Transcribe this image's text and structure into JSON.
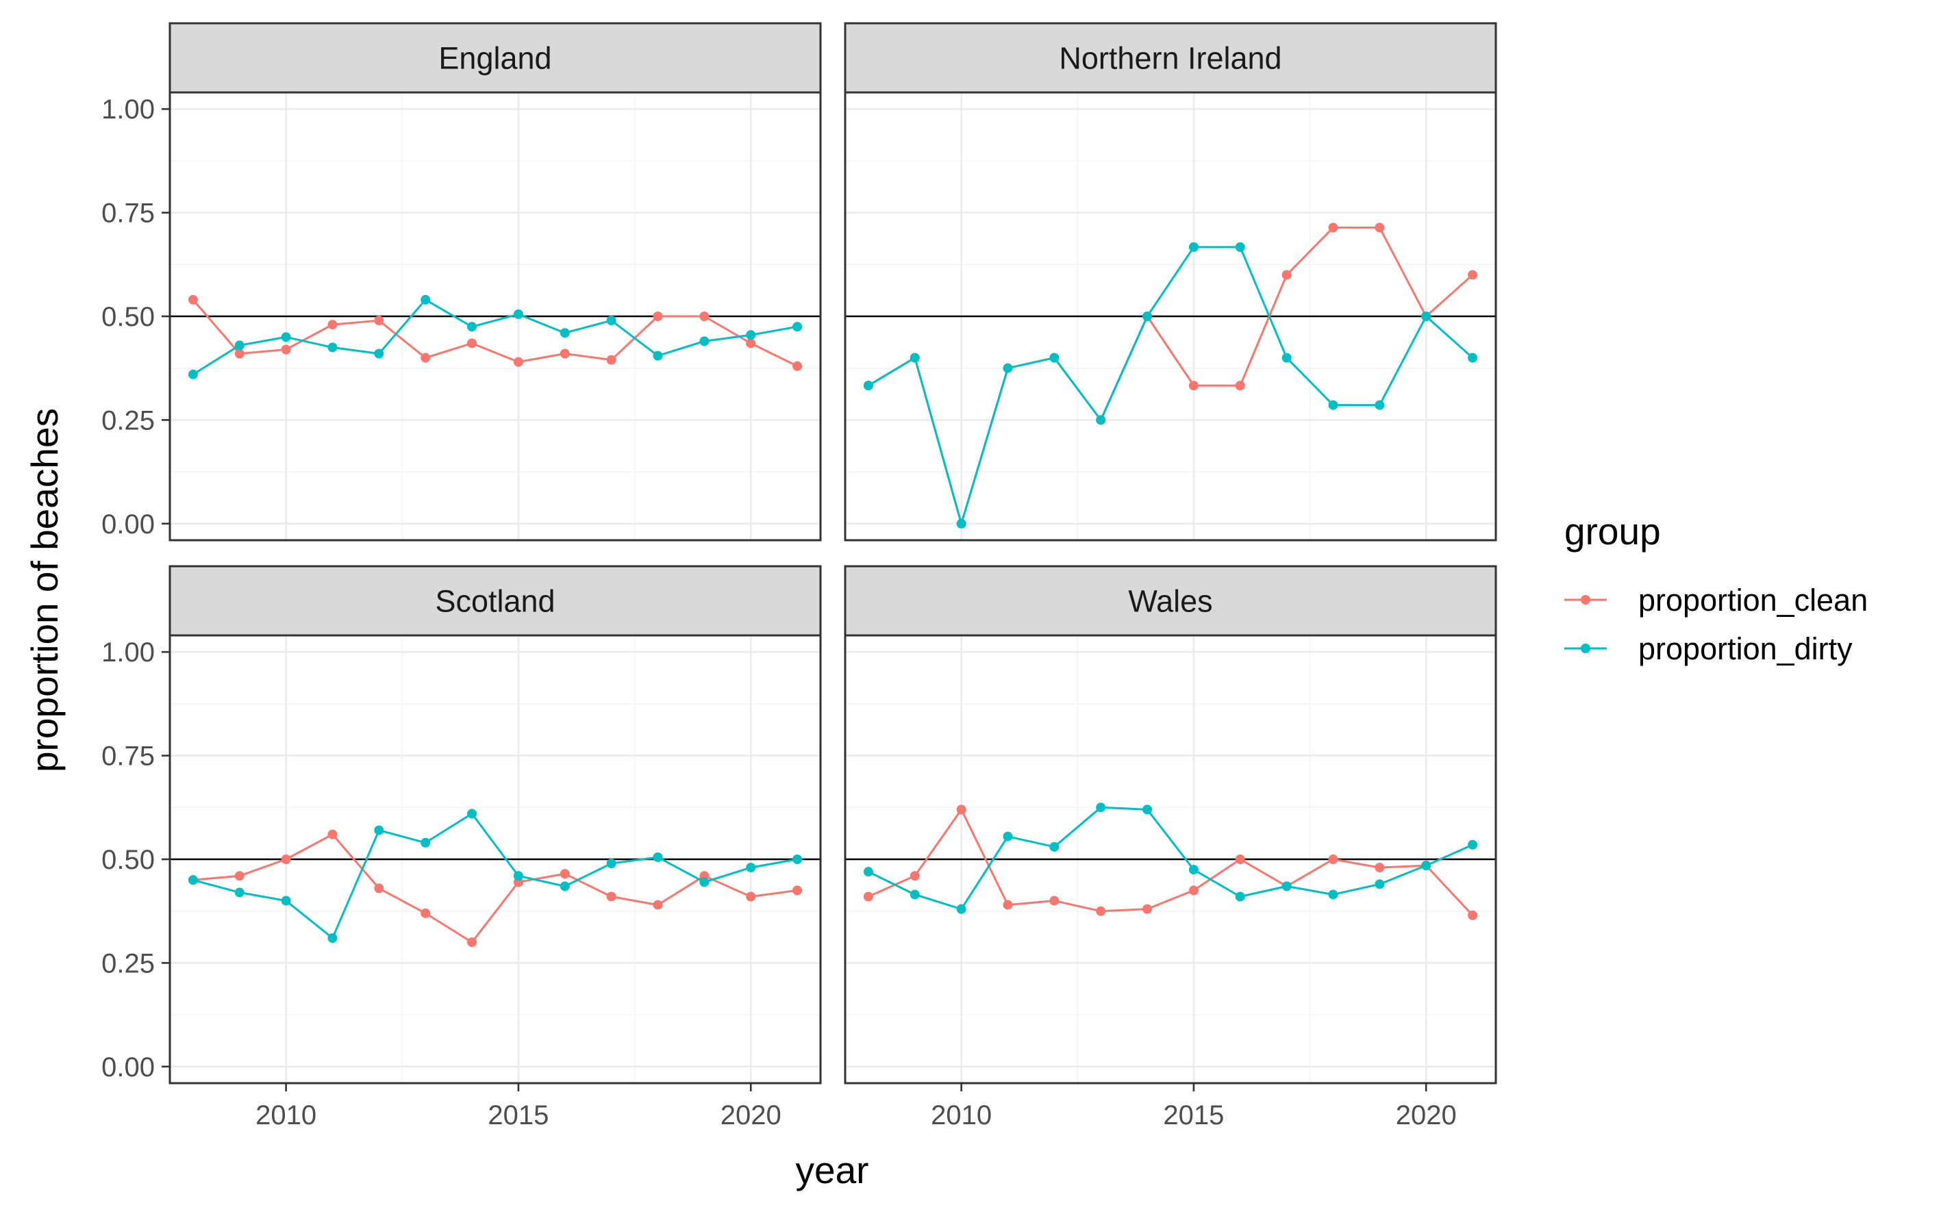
{
  "chart_data": {
    "type": "line",
    "facet_by": "country",
    "xlabel": "year",
    "ylabel": "proportion of beaches",
    "xlim": [
      2007.5,
      2021.5
    ],
    "ylim": [
      -0.04,
      1.04
    ],
    "x_ticks": [
      2010,
      2015,
      2020
    ],
    "x_tick_labels": [
      "2010",
      "2015",
      "2020"
    ],
    "y_ticks": [
      0,
      0.25,
      0.5,
      0.75,
      1
    ],
    "y_tick_labels": [
      "0.00",
      "0.25",
      "0.50",
      "0.75",
      "1.00"
    ],
    "reference_line": 0.5,
    "grid": true,
    "legend": {
      "title": "group",
      "placement": "right",
      "entries": [
        "proportion_clean",
        "proportion_dirty"
      ]
    },
    "colors": {
      "proportion_clean": "#F8766D",
      "proportion_dirty": "#00BFC4"
    },
    "x": [
      2008,
      2009,
      2010,
      2011,
      2012,
      2013,
      2014,
      2015,
      2016,
      2017,
      2018,
      2019,
      2020,
      2021
    ],
    "panels": [
      {
        "title": "England",
        "series": [
          {
            "name": "proportion_clean",
            "values": [
              0.54,
              0.41,
              0.42,
              0.48,
              0.49,
              0.4,
              0.435,
              0.39,
              0.41,
              0.395,
              0.5,
              0.5,
              0.435,
              0.38
            ]
          },
          {
            "name": "proportion_dirty",
            "values": [
              0.36,
              0.43,
              0.45,
              0.425,
              0.41,
              0.54,
              0.475,
              0.505,
              0.46,
              0.49,
              0.405,
              0.44,
              0.455,
              0.475
            ]
          }
        ]
      },
      {
        "title": "Northern Ireland",
        "series": [
          {
            "name": "proportion_clean",
            "values": [
              0.333,
              0.4,
              0.0,
              0.375,
              0.4,
              0.25,
              0.5,
              0.333,
              0.333,
              0.6,
              0.714,
              0.714,
              0.5,
              0.6
            ]
          },
          {
            "name": "proportion_dirty",
            "values": [
              0.333,
              0.4,
              0.0,
              0.375,
              0.4,
              0.25,
              0.5,
              0.667,
              0.667,
              0.4,
              0.286,
              0.286,
              0.5,
              0.4
            ]
          }
        ]
      },
      {
        "title": "Scotland",
        "series": [
          {
            "name": "proportion_clean",
            "values": [
              0.45,
              0.46,
              0.5,
              0.56,
              0.43,
              0.37,
              0.3,
              0.445,
              0.465,
              0.41,
              0.39,
              0.46,
              0.41,
              0.425
            ]
          },
          {
            "name": "proportion_dirty",
            "values": [
              0.45,
              0.42,
              0.4,
              0.31,
              0.57,
              0.54,
              0.61,
              0.46,
              0.435,
              0.49,
              0.505,
              0.445,
              0.48,
              0.5
            ]
          }
        ]
      },
      {
        "title": "Wales",
        "series": [
          {
            "name": "proportion_clean",
            "values": [
              0.41,
              0.46,
              0.62,
              0.39,
              0.4,
              0.375,
              0.38,
              0.425,
              0.5,
              0.435,
              0.5,
              0.48,
              0.485,
              0.365
            ]
          },
          {
            "name": "proportion_dirty",
            "values": [
              0.47,
              0.415,
              0.38,
              0.555,
              0.53,
              0.625,
              0.62,
              0.475,
              0.41,
              0.435,
              0.415,
              0.44,
              0.485,
              0.535
            ]
          }
        ]
      }
    ]
  }
}
